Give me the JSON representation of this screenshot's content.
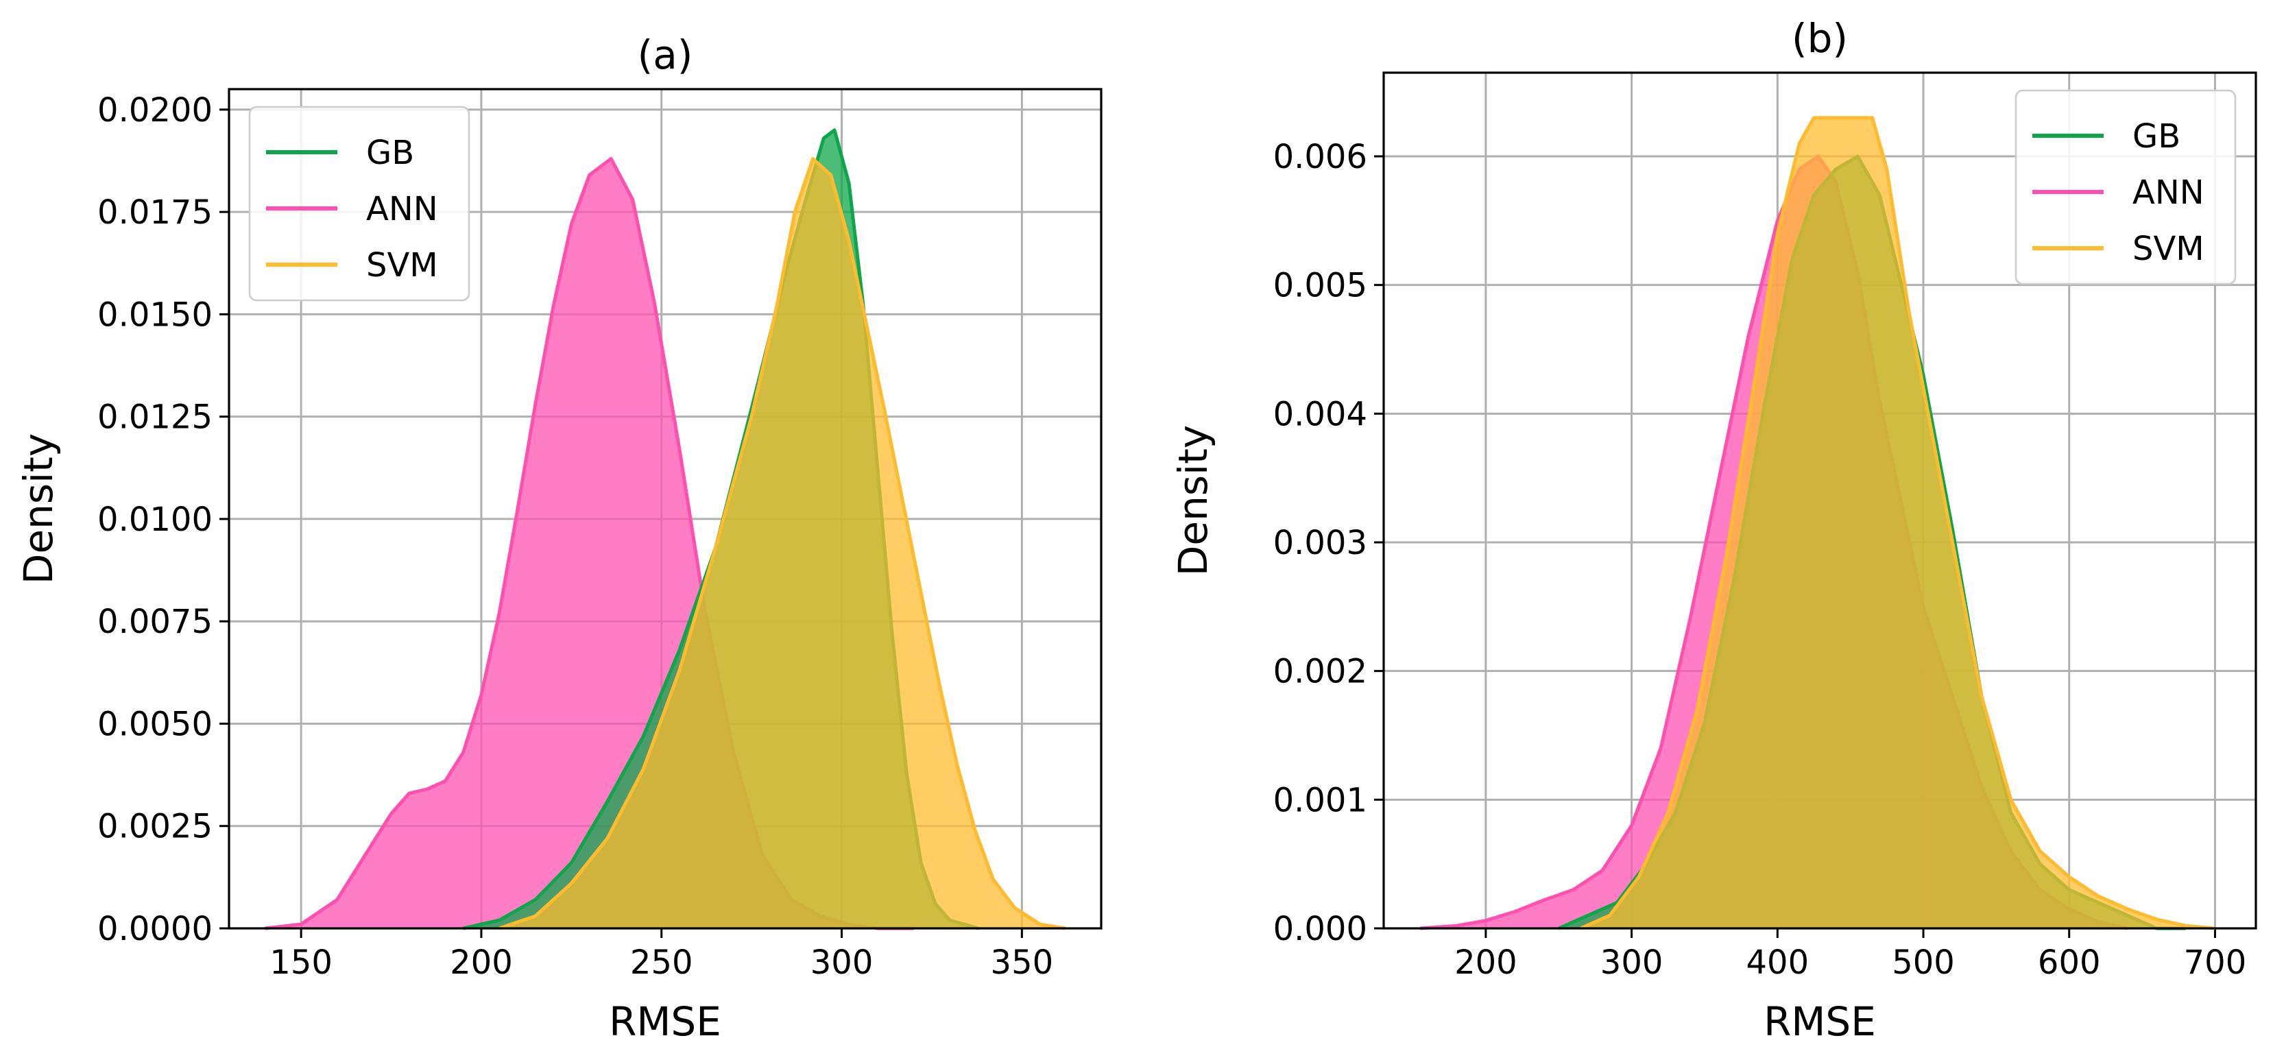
{
  "colors": {
    "GB": "#0ea64a",
    "ANN": "#ff4fb0",
    "SVM": "#ffbb2e"
  },
  "chart_data": [
    {
      "type": "area",
      "title": "(a)",
      "xlabel": "RMSE",
      "ylabel": "Density",
      "xlim": [
        130,
        372
      ],
      "ylim": [
        0,
        0.0205
      ],
      "xticks": [
        "150",
        "200",
        "250",
        "300",
        "350"
      ],
      "yticks": [
        "0.0000",
        "0.0025",
        "0.0050",
        "0.0075",
        "0.0100",
        "0.0125",
        "0.0150",
        "0.0175",
        "0.0200"
      ],
      "grid": true,
      "legend_position": "top-left",
      "series": [
        {
          "name": "GB",
          "x": [
            195,
            205,
            215,
            225,
            235,
            245,
            255,
            265,
            275,
            285,
            290,
            295,
            298,
            302,
            306,
            310,
            314,
            318,
            322,
            326,
            330,
            334,
            338
          ],
          "values": [
            0,
            0.0002,
            0.0007,
            0.0016,
            0.0031,
            0.0047,
            0.0068,
            0.0093,
            0.0127,
            0.0162,
            0.0178,
            0.0193,
            0.0195,
            0.0182,
            0.0152,
            0.0112,
            0.0072,
            0.0038,
            0.0016,
            0.0006,
            0.0002,
            0.0001,
            0
          ]
        },
        {
          "name": "ANN",
          "x": [
            140,
            150,
            160,
            170,
            175,
            180,
            185,
            190,
            195,
            200,
            205,
            210,
            215,
            220,
            225,
            230,
            236,
            242,
            248,
            255,
            262,
            270,
            278,
            286,
            294,
            302,
            310,
            320
          ],
          "values": [
            0,
            0.0001,
            0.0007,
            0.0021,
            0.0028,
            0.0033,
            0.0034,
            0.0036,
            0.0043,
            0.0057,
            0.0077,
            0.0102,
            0.0128,
            0.0152,
            0.0172,
            0.0184,
            0.0188,
            0.0178,
            0.0153,
            0.0117,
            0.0078,
            0.0043,
            0.0018,
            0.0007,
            0.0003,
            0.0001,
            0,
            0
          ]
        },
        {
          "name": "SVM",
          "x": [
            205,
            215,
            225,
            235,
            245,
            255,
            265,
            275,
            282,
            287,
            292,
            297,
            302,
            307,
            312,
            317,
            322,
            327,
            332,
            337,
            342,
            348,
            355,
            362
          ],
          "values": [
            0,
            0.0003,
            0.0011,
            0.0022,
            0.0039,
            0.0063,
            0.0093,
            0.0125,
            0.0152,
            0.0175,
            0.0188,
            0.0184,
            0.0168,
            0.0147,
            0.0126,
            0.0104,
            0.0082,
            0.006,
            0.004,
            0.0024,
            0.0012,
            0.0005,
            0.0001,
            0
          ]
        }
      ]
    },
    {
      "type": "area",
      "title": "(b)",
      "xlabel": "RMSE",
      "ylabel": "Density",
      "xlim": [
        130,
        728
      ],
      "ylim": [
        0,
        0.00665
      ],
      "xticks": [
        "200",
        "300",
        "400",
        "500",
        "600",
        "700"
      ],
      "yticks": [
        "0.000",
        "0.001",
        "0.002",
        "0.003",
        "0.004",
        "0.005",
        "0.006"
      ],
      "grid": true,
      "legend_position": "top-right",
      "series": [
        {
          "name": "GB",
          "x": [
            250,
            270,
            290,
            310,
            330,
            350,
            370,
            390,
            410,
            425,
            440,
            455,
            470,
            485,
            500,
            520,
            540,
            560,
            580,
            600,
            620,
            640,
            660,
            680
          ],
          "values": [
            0,
            0.0001,
            0.0002,
            0.0005,
            0.0009,
            0.0016,
            0.0027,
            0.004,
            0.0052,
            0.0057,
            0.0059,
            0.006,
            0.0057,
            0.005,
            0.0043,
            0.0031,
            0.0018,
            0.0009,
            0.0005,
            0.0003,
            0.0002,
            0.0001,
            0,
            0
          ]
        },
        {
          "name": "ANN",
          "x": [
            155,
            180,
            200,
            220,
            240,
            260,
            280,
            300,
            320,
            340,
            360,
            380,
            400,
            415,
            428,
            440,
            455,
            470,
            485,
            500,
            520,
            540,
            560,
            580,
            600,
            620,
            640
          ],
          "values": [
            0,
            2e-05,
            6e-05,
            0.00013,
            0.00022,
            0.0003,
            0.00045,
            0.0008,
            0.0014,
            0.0024,
            0.0035,
            0.0046,
            0.0055,
            0.0059,
            0.006,
            0.0058,
            0.0051,
            0.0041,
            0.0033,
            0.0025,
            0.0018,
            0.0011,
            0.0006,
            0.0003,
            0.00015,
            5e-05,
            0
          ]
        },
        {
          "name": "SVM",
          "x": [
            265,
            285,
            305,
            325,
            345,
            365,
            385,
            400,
            415,
            425,
            435,
            445,
            455,
            465,
            475,
            490,
            505,
            520,
            540,
            560,
            580,
            600,
            620,
            640,
            660,
            680,
            700
          ],
          "values": [
            0,
            0.0001,
            0.0004,
            0.0009,
            0.0017,
            0.0029,
            0.0043,
            0.0054,
            0.0061,
            0.0063,
            0.0063,
            0.0063,
            0.0063,
            0.0063,
            0.0059,
            0.0048,
            0.0039,
            0.003,
            0.0018,
            0.001,
            0.0006,
            0.0004,
            0.00025,
            0.00015,
            7e-05,
            2e-05,
            0
          ]
        }
      ]
    }
  ]
}
